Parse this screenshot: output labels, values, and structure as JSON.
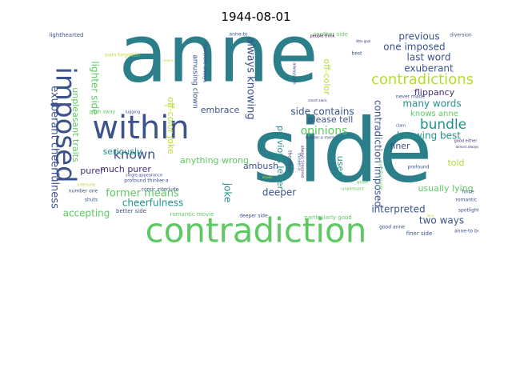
{
  "title": "1944-08-01",
  "colors": {
    "teal": "#2a7f8a",
    "green": "#5ec962",
    "lime": "#b5de2b",
    "blue": "#3b528b",
    "purple": "#472d7b",
    "darkpurple": "#440154",
    "seagreen": "#21918c",
    "yellow": "#fde725"
  },
  "words": [
    {
      "text": "anne",
      "color": "teal"
    },
    {
      "text": "side",
      "color": "teal"
    },
    {
      "text": "contradiction",
      "color": "green"
    },
    {
      "text": "within",
      "color": "blue"
    },
    {
      "text": "imposed",
      "color": "blue"
    },
    {
      "text": "contradictions",
      "color": "lime"
    },
    {
      "text": "known",
      "color": "blue"
    },
    {
      "text": "bundle",
      "color": "seagreen"
    },
    {
      "text": "previous",
      "color": "blue"
    },
    {
      "text": "one imposed",
      "color": "blue"
    },
    {
      "text": "last word",
      "color": "blue"
    },
    {
      "text": "exuberant",
      "color": "blue"
    },
    {
      "text": "many words",
      "color": "seagreen"
    },
    {
      "text": "side contains",
      "color": "blue"
    },
    {
      "text": "opinions",
      "color": "green"
    },
    {
      "text": "please tell",
      "color": "blue"
    },
    {
      "text": "knowing best",
      "color": "seagreen"
    },
    {
      "text": "interpreted",
      "color": "blue"
    },
    {
      "text": "two ways",
      "color": "blue"
    },
    {
      "text": "usually lying",
      "color": "green"
    },
    {
      "text": "told",
      "color": "lime"
    },
    {
      "text": "former means",
      "color": "green"
    },
    {
      "text": "cheerfulness",
      "color": "seagreen"
    },
    {
      "text": "accepting",
      "color": "green"
    },
    {
      "text": "seriously",
      "color": "seagreen"
    },
    {
      "text": "much purer",
      "color": "purple"
    },
    {
      "text": "purer",
      "color": "purple"
    },
    {
      "text": "ambush",
      "color": "blue"
    },
    {
      "text": "deeper",
      "color": "blue"
    },
    {
      "text": "anything wrong",
      "color": "green"
    },
    {
      "text": "embrace",
      "color": "blue"
    },
    {
      "text": "always knowing",
      "color": "blue"
    },
    {
      "text": "joke",
      "color": "seagreen"
    },
    {
      "text": "previous letter",
      "color": "seagreen"
    },
    {
      "text": "used",
      "color": "seagreen"
    },
    {
      "text": "contradiction imposed",
      "color": "blue"
    },
    {
      "text": "flippancy",
      "color": "purple"
    },
    {
      "text": "finer",
      "color": "blue"
    },
    {
      "text": "knows anne",
      "color": "green"
    },
    {
      "text": "off-color",
      "color": "lime"
    },
    {
      "text": "exuberant cheerfulness",
      "color": "blue"
    },
    {
      "text": "unpleasant traits",
      "color": "green"
    },
    {
      "text": "lighter side",
      "color": "green"
    },
    {
      "text": "off-color joke",
      "color": "lime"
    },
    {
      "text": "amusing clown",
      "color": "blue"
    },
    {
      "text": "lighthearted",
      "color": "blue"
    },
    {
      "text": "diversion",
      "color": "blue"
    },
    {
      "text": "soon forgotten",
      "color": "lime"
    },
    {
      "text": "push away",
      "color": "green"
    },
    {
      "text": "profound thinker-a",
      "color": "blue"
    },
    {
      "text": "comic interlude",
      "color": "blue"
    },
    {
      "text": "better side",
      "color": "blue"
    },
    {
      "text": "romantic movie",
      "color": "green"
    },
    {
      "text": "deeper side",
      "color": "blue"
    },
    {
      "text": "particularly good",
      "color": "green"
    },
    {
      "text": "another side",
      "color": "green"
    },
    {
      "text": "anne-to best",
      "color": "blue"
    },
    {
      "text": "finer side",
      "color": "blue"
    },
    {
      "text": "good anne",
      "color": "blue"
    },
    {
      "text": "profound",
      "color": "blue"
    },
    {
      "text": "force",
      "color": "blue"
    },
    {
      "text": "spotlight",
      "color": "blue"
    },
    {
      "text": "romantic",
      "color": "blue"
    },
    {
      "text": "good either",
      "color": "purple"
    },
    {
      "text": "never made",
      "color": "blue"
    },
    {
      "text": "clam",
      "color": "blue"
    },
    {
      "text": "best",
      "color": "blue"
    },
    {
      "text": "always win",
      "color": "blue"
    },
    {
      "text": "therefore",
      "color": "blue"
    },
    {
      "text": "thinker-a",
      "color": "blue"
    },
    {
      "text": "thinker-a mere",
      "color": "blue"
    },
    {
      "text": "always tiresome",
      "color": "purple"
    },
    {
      "text": "people think",
      "color": "darkpurple"
    },
    {
      "text": "little goal",
      "color": "purple"
    },
    {
      "text": "smart aleck",
      "color": "purple"
    },
    {
      "text": "anne-to",
      "color": "blue"
    },
    {
      "text": "number one",
      "color": "blue"
    },
    {
      "text": "interlude",
      "color": "lime"
    },
    {
      "text": "single appearance",
      "color": "blue"
    },
    {
      "text": "shuts",
      "color": "blue"
    },
    {
      "text": "lugging",
      "color": "blue"
    },
    {
      "text": "therefore always",
      "color": "blue"
    },
    {
      "text": "superficial side",
      "color": "green"
    },
    {
      "text": "almost always",
      "color": "purple"
    },
    {
      "text": "means",
      "color": "lime"
    },
    {
      "text": "whole",
      "color": "green"
    },
    {
      "text": "unpleasant",
      "color": "green"
    },
    {
      "text": "knows",
      "color": "lime"
    },
    {
      "text": "comic",
      "color": "lime"
    },
    {
      "text": "face",
      "color": "lime"
    }
  ]
}
